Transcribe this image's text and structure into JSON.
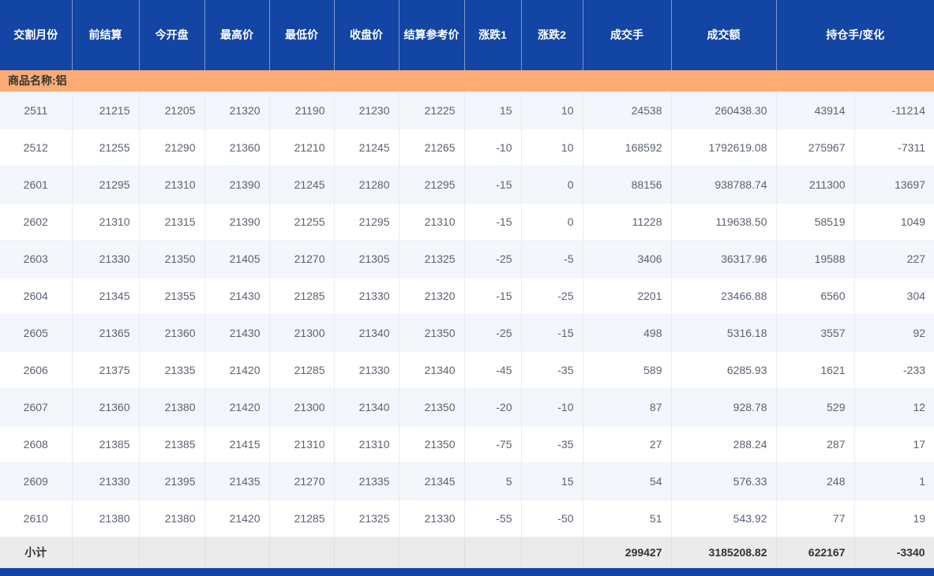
{
  "colors": {
    "header_bg": "#1245a4",
    "header_text": "#ffffff",
    "group_bg": "#fbab73",
    "group_text": "#333333",
    "row_alt_bg": "#f3f6fa",
    "row_bg": "#ffffff",
    "cell_text": "#5a6372",
    "subtotal_bg": "#ebebeb",
    "subtotal_text": "#333333",
    "footer_bg": "#1245a4"
  },
  "table": {
    "columns": [
      {
        "label": "交割月份"
      },
      {
        "label": "前结算"
      },
      {
        "label": "今开盘"
      },
      {
        "label": "最高价"
      },
      {
        "label": "最低价"
      },
      {
        "label": "收盘价"
      },
      {
        "label": "结算参考价"
      },
      {
        "label": "涨跌1"
      },
      {
        "label": "涨跌2"
      },
      {
        "label": "成交手"
      },
      {
        "label": "成交额"
      },
      {
        "label": "持仓手/变化"
      }
    ],
    "group_header": {
      "label": "商品名称:铝"
    },
    "rows": [
      {
        "cells": [
          "2511",
          "21215",
          "21205",
          "21320",
          "21190",
          "21230",
          "21225",
          "15",
          "10",
          "24538",
          "260438.30",
          "43914",
          "-11214"
        ]
      },
      {
        "cells": [
          "2512",
          "21255",
          "21290",
          "21360",
          "21210",
          "21245",
          "21265",
          "-10",
          "10",
          "168592",
          "1792619.08",
          "275967",
          "-7311"
        ]
      },
      {
        "cells": [
          "2601",
          "21295",
          "21310",
          "21390",
          "21245",
          "21280",
          "21295",
          "-15",
          "0",
          "88156",
          "938788.74",
          "211300",
          "13697"
        ]
      },
      {
        "cells": [
          "2602",
          "21310",
          "21315",
          "21390",
          "21255",
          "21295",
          "21310",
          "-15",
          "0",
          "11228",
          "119638.50",
          "58519",
          "1049"
        ]
      },
      {
        "cells": [
          "2603",
          "21330",
          "21350",
          "21405",
          "21270",
          "21305",
          "21325",
          "-25",
          "-5",
          "3406",
          "36317.96",
          "19588",
          "227"
        ]
      },
      {
        "cells": [
          "2604",
          "21345",
          "21355",
          "21430",
          "21285",
          "21330",
          "21320",
          "-15",
          "-25",
          "2201",
          "23466.88",
          "6560",
          "304"
        ]
      },
      {
        "cells": [
          "2605",
          "21365",
          "21360",
          "21430",
          "21300",
          "21340",
          "21350",
          "-25",
          "-15",
          "498",
          "5316.18",
          "3557",
          "92"
        ]
      },
      {
        "cells": [
          "2606",
          "21375",
          "21335",
          "21420",
          "21285",
          "21330",
          "21340",
          "-45",
          "-35",
          "589",
          "6285.93",
          "1621",
          "-233"
        ]
      },
      {
        "cells": [
          "2607",
          "21360",
          "21380",
          "21420",
          "21300",
          "21340",
          "21350",
          "-20",
          "-10",
          "87",
          "928.78",
          "529",
          "12"
        ]
      },
      {
        "cells": [
          "2608",
          "21385",
          "21385",
          "21415",
          "21310",
          "21310",
          "21350",
          "-75",
          "-35",
          "27",
          "288.24",
          "287",
          "17"
        ]
      },
      {
        "cells": [
          "2609",
          "21330",
          "21395",
          "21435",
          "21270",
          "21335",
          "21345",
          "5",
          "15",
          "54",
          "576.33",
          "248",
          "1"
        ]
      },
      {
        "cells": [
          "2610",
          "21380",
          "21380",
          "21420",
          "21285",
          "21325",
          "21330",
          "-55",
          "-50",
          "51",
          "543.92",
          "77",
          "19"
        ]
      }
    ],
    "subtotal": {
      "cells": [
        "小计",
        "",
        "",
        "",
        "",
        "",
        "",
        "",
        "",
        "299427",
        "3185208.82",
        "622167",
        "-3340"
      ]
    }
  }
}
